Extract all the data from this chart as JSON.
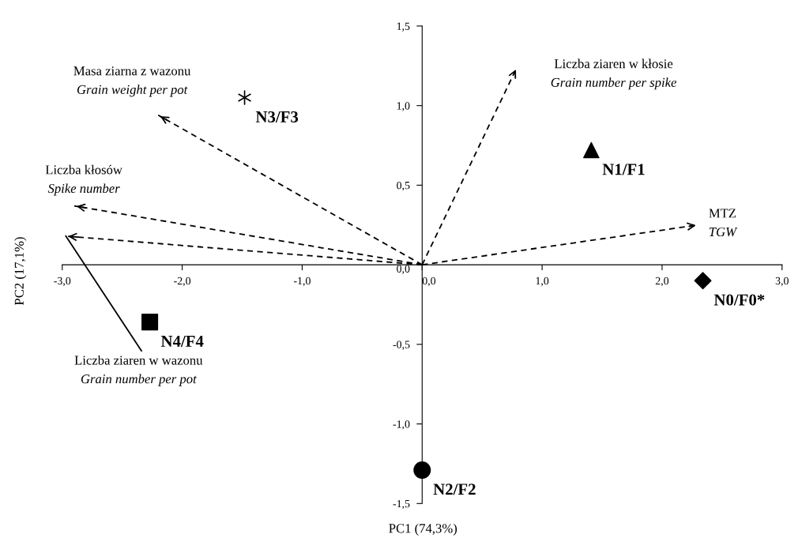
{
  "chart_data": {
    "type": "scatter",
    "xlabel": "PC1 (74,3%)",
    "ylabel": "PC2 (17,1%)",
    "xlim": [
      -3,
      3
    ],
    "ylim": [
      -1.5,
      1.5
    ],
    "xticks": [
      {
        "value": -3,
        "label": "-3,0"
      },
      {
        "value": -2,
        "label": "-2,0"
      },
      {
        "value": -1,
        "label": "-1,0"
      },
      {
        "value": 0,
        "label": "0,0"
      },
      {
        "value": 1,
        "label": "1,0"
      },
      {
        "value": 2,
        "label": "2,0"
      },
      {
        "value": 3,
        "label": "3,0"
      }
    ],
    "yticks": [
      {
        "value": -1.5,
        "label": "-1,5"
      },
      {
        "value": -1,
        "label": "-1,0"
      },
      {
        "value": -0.5,
        "label": "-0,5"
      },
      {
        "value": 0,
        "label": "0,0"
      },
      {
        "value": 0.5,
        "label": "0,5"
      },
      {
        "value": 1,
        "label": "1,0"
      },
      {
        "value": 1.5,
        "label": "1,5"
      }
    ],
    "series": [
      {
        "name": "N0/F0*",
        "type": "scatter",
        "marker": "diamond",
        "color": "#000000",
        "x": [
          2.34
        ],
        "values": [
          -0.1
        ]
      },
      {
        "name": "N1/F1",
        "type": "scatter",
        "marker": "triangle",
        "color": "#000000",
        "x": [
          1.41
        ],
        "values": [
          0.72
        ]
      },
      {
        "name": "N2/F2",
        "type": "scatter",
        "marker": "circle",
        "color": "#000000",
        "x": [
          0.0
        ],
        "values": [
          -1.29
        ]
      },
      {
        "name": "N3/F3",
        "type": "scatter",
        "marker": "cross",
        "color": "#000000",
        "x": [
          -1.48
        ],
        "values": [
          1.05
        ]
      },
      {
        "name": "N4/F4",
        "type": "scatter",
        "marker": "square",
        "color": "#000000",
        "x": [
          -2.27
        ],
        "values": [
          -0.36
        ]
      },
      {
        "type": "line",
        "line_style": "dashed",
        "marker": "none",
        "color": "#000000",
        "x": [
          0,
          -2.2,
          null,
          0,
          -2.9,
          null,
          0,
          -2.97,
          null,
          0,
          0.79,
          null,
          0,
          2.3
        ],
        "values": [
          0,
          0.94,
          null,
          0,
          0.37,
          null,
          0,
          0.18,
          null,
          0,
          1.24,
          null,
          0,
          0.25
        ]
      },
      {
        "type": "line",
        "line_style": "solid",
        "marker": "none",
        "color": "#000000",
        "x": [
          -2.97,
          -2.34
        ],
        "values": [
          0.18,
          -0.54
        ]
      }
    ],
    "annotations": [
      "Masa ziarna z wazonu\nGrain weight per pot",
      "Liczba kłosów\nSpike number",
      "Liczba ziaren w kłosie\nGrain number per spike",
      "MTZ\nTGW",
      "Liczba ziaren w wazonu\nGrain number per pot"
    ]
  }
}
